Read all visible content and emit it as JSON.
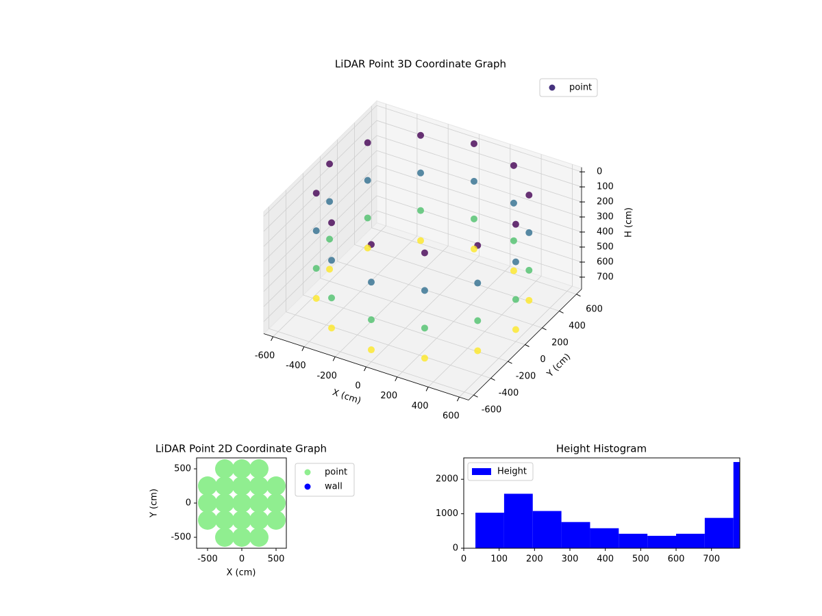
{
  "chart_data": [
    {
      "type": "scatter3d",
      "title": "LiDAR Point 3D Coordinate Graph",
      "x_label": "X (cm)",
      "y_label": "Y (cm)",
      "z_label": "H (cm)",
      "xlim": [
        -660,
        660
      ],
      "ylim": [
        -660,
        660
      ],
      "zlim": [
        -30,
        780
      ],
      "z_inverted": true,
      "xticks": [
        -600,
        -400,
        -200,
        0,
        200,
        400,
        600
      ],
      "yticks": [
        -600,
        -400,
        -200,
        0,
        200,
        400,
        600
      ],
      "zticks": [
        0,
        100,
        200,
        300,
        400,
        500,
        600,
        700
      ],
      "colormap": "viridis",
      "grid": true,
      "legend": "upper right",
      "series": [
        {
          "name": "point",
          "color": "#46327e",
          "x": [
            600,
            520,
            300,
            0,
            -300,
            -520,
            -600,
            -520,
            -300,
            0,
            300,
            520,
            600,
            520,
            300,
            0,
            -300,
            -520,
            -600,
            -520,
            -300,
            0,
            300,
            520,
            600,
            520,
            300,
            0,
            -300,
            -520,
            -600,
            -520,
            -300,
            0,
            300,
            520,
            600,
            520,
            300,
            0,
            -300,
            -520,
            -600,
            -520,
            -300,
            0,
            300,
            520
          ],
          "y": [
            0,
            300,
            520,
            600,
            520,
            300,
            0,
            -300,
            -520,
            -600,
            -520,
            -300,
            0,
            300,
            520,
            600,
            520,
            300,
            0,
            -300,
            -520,
            -600,
            -520,
            -300,
            0,
            300,
            520,
            600,
            520,
            300,
            0,
            -300,
            -520,
            -600,
            -520,
            -300,
            0,
            300,
            520,
            600,
            520,
            300,
            0,
            -300,
            -520,
            -600,
            -520,
            -300
          ],
          "z": [
            0,
            0,
            0,
            0,
            0,
            0,
            0,
            0,
            0,
            0,
            0,
            0,
            250,
            250,
            250,
            250,
            250,
            250,
            250,
            250,
            250,
            250,
            250,
            250,
            500,
            500,
            500,
            500,
            500,
            500,
            500,
            500,
            500,
            500,
            500,
            500,
            700,
            700,
            700,
            700,
            700,
            700,
            700,
            700,
            700,
            700,
            700,
            700
          ]
        }
      ]
    },
    {
      "type": "scatter",
      "title": "LiDAR Point 2D Coordinate Graph",
      "x_label": "X (cm)",
      "y_label": "Y (cm)",
      "xlim": [
        -660,
        650
      ],
      "ylim": [
        -660,
        660
      ],
      "xticks": [
        -500,
        0,
        500
      ],
      "yticks": [
        -500,
        0,
        500
      ],
      "legend": "outside right",
      "series": [
        {
          "name": "point",
          "color": "#90ee90",
          "x": [
            -250,
            0,
            250,
            -500,
            -250,
            0,
            250,
            500,
            -500,
            -250,
            0,
            250,
            500,
            -500,
            -250,
            0,
            250,
            500,
            -250,
            0,
            250
          ],
          "y": [
            -500,
            -500,
            -500,
            -250,
            -250,
            -250,
            -250,
            -250,
            0,
            0,
            0,
            0,
            0,
            250,
            250,
            250,
            250,
            250,
            500,
            500,
            500
          ]
        },
        {
          "name": "wall",
          "color": "#0000ff",
          "x": [],
          "y": []
        }
      ]
    },
    {
      "type": "histogram",
      "title": "Height Histogram",
      "label": "Height",
      "color": "#0000ff",
      "bins": [
        33,
        114,
        195,
        276,
        357,
        438,
        519,
        600,
        681,
        762,
        843
      ],
      "values": [
        1030,
        1580,
        1080,
        760,
        580,
        420,
        360,
        420,
        880,
        2500
      ],
      "xlim": [
        0,
        780
      ],
      "ylim": [
        0,
        2620
      ],
      "xticks": [
        0,
        100,
        200,
        300,
        400,
        500,
        600,
        700
      ],
      "yticks": [
        0,
        1000,
        2000
      ],
      "legend": "upper left"
    }
  ]
}
